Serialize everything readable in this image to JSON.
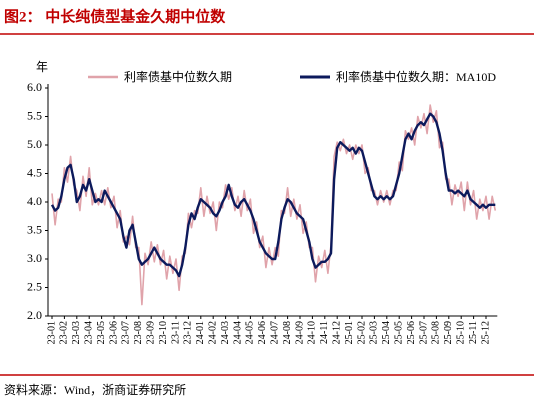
{
  "chart_data": {
    "type": "line",
    "title": "图2：  中长纯债型基金久期中位数",
    "y_unit": "年",
    "source": "资料来源：Wind，浙商证券研究所",
    "categories": [
      "23-01",
      null,
      null,
      null,
      "23-02",
      null,
      null,
      null,
      "23-03",
      null,
      null,
      null,
      "23-04",
      null,
      null,
      null,
      "23-05",
      null,
      null,
      null,
      "23-06",
      null,
      null,
      null,
      "23-07",
      null,
      null,
      null,
      "23-08",
      null,
      null,
      null,
      "23-09",
      null,
      null,
      null,
      "23-10",
      null,
      null,
      null,
      "23-11",
      null,
      null,
      null,
      "23-12",
      null,
      null,
      null,
      "24-01",
      null,
      null,
      null,
      "24-02",
      null,
      null,
      null,
      "24-03",
      null,
      null,
      null,
      "24-04",
      null,
      null,
      null,
      "24-05",
      null,
      null,
      null,
      "24-06",
      null,
      null,
      null,
      "24-07",
      null,
      null,
      null,
      "24-08",
      null,
      null,
      null,
      "24-09",
      null,
      null,
      null,
      "24-10",
      null,
      null,
      null,
      "24-11",
      null,
      null,
      null,
      "24-12",
      null,
      null,
      null,
      "25-01",
      null,
      null,
      null,
      "25-02",
      null,
      null,
      null,
      "25-03",
      null,
      null,
      null,
      "25-04",
      null,
      null,
      null,
      "25-05",
      null,
      null,
      null,
      "25-06",
      null,
      null,
      null,
      "25-07",
      null,
      null,
      null,
      "25-08",
      null,
      null,
      null,
      "25-09",
      null,
      null,
      null,
      "25-10",
      null,
      null,
      null,
      "25-11",
      null,
      null,
      null,
      "25-12",
      null,
      null,
      null
    ],
    "series": [
      {
        "name": "利率债基中位数久期",
        "color": "#e0a3aa",
        "values": [
          4.15,
          3.6,
          4.05,
          4.0,
          4.6,
          4.35,
          4.8,
          4.3,
          4.2,
          3.85,
          4.45,
          4.1,
          4.6,
          3.95,
          4.15,
          3.95,
          4.2,
          3.95,
          4.25,
          3.9,
          4.1,
          3.55,
          3.85,
          3.3,
          3.4,
          3.25,
          3.75,
          3.2,
          3.2,
          2.2,
          3.1,
          2.9,
          3.3,
          2.95,
          3.25,
          2.9,
          3.15,
          2.65,
          3.05,
          2.75,
          3.0,
          2.45,
          3.05,
          3.1,
          3.8,
          3.55,
          3.85,
          3.8,
          4.25,
          3.75,
          4.1,
          3.8,
          4.0,
          3.5,
          4.0,
          3.9,
          4.3,
          4.05,
          4.25,
          3.85,
          4.1,
          3.75,
          4.2,
          3.85,
          4.05,
          3.45,
          3.65,
          3.2,
          3.4,
          2.85,
          3.2,
          2.9,
          3.2,
          3.05,
          3.85,
          3.8,
          4.25,
          3.75,
          4.05,
          3.7,
          3.95,
          3.45,
          3.65,
          3.2,
          3.2,
          2.6,
          3.05,
          2.85,
          3.15,
          2.75,
          3.25,
          4.8,
          5.05,
          4.9,
          5.1,
          4.85,
          5.0,
          4.75,
          5.0,
          4.85,
          5.0,
          4.5,
          4.6,
          4.2,
          4.2,
          3.95,
          4.2,
          4.0,
          4.2,
          3.95,
          4.2,
          4.2,
          4.7,
          4.55,
          5.25,
          5.1,
          5.3,
          5.0,
          5.5,
          5.3,
          5.55,
          5.2,
          5.7,
          5.4,
          5.6,
          4.95,
          5.05,
          4.4,
          4.4,
          3.95,
          4.3,
          4.1,
          4.35,
          3.85,
          4.35,
          3.95,
          4.2,
          3.7,
          4.05,
          3.85,
          4.1,
          3.7,
          4.1,
          3.85
        ]
      },
      {
        "name": "利率债基中位数久期：MA10D",
        "color": "#0c1a5c",
        "values": [
          3.95,
          3.85,
          3.9,
          4.1,
          4.4,
          4.6,
          4.65,
          4.4,
          4.0,
          4.1,
          4.3,
          4.2,
          4.4,
          4.2,
          4.0,
          4.05,
          4.0,
          4.2,
          4.1,
          4.0,
          3.9,
          3.8,
          3.7,
          3.4,
          3.2,
          3.5,
          3.6,
          3.3,
          3.0,
          2.9,
          2.95,
          3.0,
          3.1,
          3.2,
          3.1,
          3.0,
          2.95,
          2.9,
          2.9,
          2.85,
          2.8,
          2.7,
          2.9,
          3.2,
          3.6,
          3.8,
          3.7,
          3.9,
          4.05,
          4.0,
          3.95,
          3.9,
          3.8,
          3.75,
          3.85,
          4.0,
          4.1,
          4.3,
          4.1,
          3.95,
          3.9,
          4.0,
          4.05,
          3.95,
          3.85,
          3.7,
          3.5,
          3.3,
          3.2,
          3.1,
          3.05,
          3.0,
          3.0,
          3.3,
          3.7,
          3.9,
          4.05,
          4.0,
          3.9,
          3.8,
          3.75,
          3.7,
          3.5,
          3.3,
          3.0,
          2.85,
          2.9,
          2.95,
          2.95,
          3.0,
          3.1,
          4.4,
          4.95,
          5.05,
          5.0,
          4.95,
          4.9,
          4.95,
          4.85,
          4.95,
          4.9,
          4.7,
          4.5,
          4.3,
          4.1,
          4.05,
          4.1,
          4.05,
          4.1,
          4.05,
          4.1,
          4.3,
          4.5,
          4.8,
          5.1,
          5.2,
          5.1,
          5.25,
          5.35,
          5.4,
          5.35,
          5.45,
          5.55,
          5.5,
          5.4,
          5.2,
          4.9,
          4.5,
          4.2,
          4.2,
          4.15,
          4.2,
          4.15,
          4.1,
          4.2,
          4.05,
          4.0,
          3.95,
          3.9,
          3.95,
          3.9,
          3.95,
          3.95,
          3.95
        ]
      }
    ],
    "ylim": [
      2.0,
      6.0
    ],
    "yticks": [
      {
        "value": 2.0,
        "label": "2.0"
      },
      {
        "value": 2.5,
        "label": "2.5"
      },
      {
        "value": 3.0,
        "label": "3.0"
      },
      {
        "value": 3.5,
        "label": "3.5"
      },
      {
        "value": 4.0,
        "label": "4.0"
      },
      {
        "value": 4.5,
        "label": "4.5"
      },
      {
        "value": 5.0,
        "label": "5.0"
      },
      {
        "value": 5.5,
        "label": "5.5"
      },
      {
        "value": 6.0,
        "label": "6.0"
      }
    ],
    "grid": false,
    "legend": "top"
  }
}
